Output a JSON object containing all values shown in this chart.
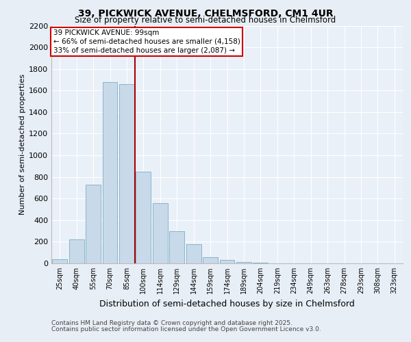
{
  "title1": "39, PICKWICK AVENUE, CHELMSFORD, CM1 4UR",
  "title2": "Size of property relative to semi-detached houses in Chelmsford",
  "xlabel": "Distribution of semi-detached houses by size in Chelmsford",
  "ylabel": "Number of semi-detached properties",
  "categories": [
    "25sqm",
    "40sqm",
    "55sqm",
    "70sqm",
    "85sqm",
    "100sqm",
    "114sqm",
    "129sqm",
    "144sqm",
    "159sqm",
    "174sqm",
    "189sqm",
    "204sqm",
    "219sqm",
    "234sqm",
    "249sqm",
    "263sqm",
    "278sqm",
    "293sqm",
    "308sqm",
    "323sqm"
  ],
  "values": [
    40,
    220,
    730,
    1680,
    1660,
    850,
    560,
    300,
    175,
    55,
    30,
    15,
    5,
    3,
    2,
    1,
    1,
    0,
    0,
    0,
    0
  ],
  "property_label": "39 PICKWICK AVENUE: 99sqm",
  "pct_smaller": 66,
  "count_smaller": 4158,
  "pct_larger": 33,
  "count_larger": 2087,
  "bar_color": "#c8d9e9",
  "bar_edge_color": "#7aaec8",
  "vline_color": "#aa0000",
  "vline_x": 4.5,
  "box_edge_color": "#cc0000",
  "bg_color": "#e8eef5",
  "plot_bg_color": "#eaf0f7",
  "ylim": [
    0,
    2200
  ],
  "yticks": [
    0,
    200,
    400,
    600,
    800,
    1000,
    1200,
    1400,
    1600,
    1800,
    2000,
    2200
  ],
  "footer1": "Contains HM Land Registry data © Crown copyright and database right 2025.",
  "footer2": "Contains public sector information licensed under the Open Government Licence v3.0."
}
